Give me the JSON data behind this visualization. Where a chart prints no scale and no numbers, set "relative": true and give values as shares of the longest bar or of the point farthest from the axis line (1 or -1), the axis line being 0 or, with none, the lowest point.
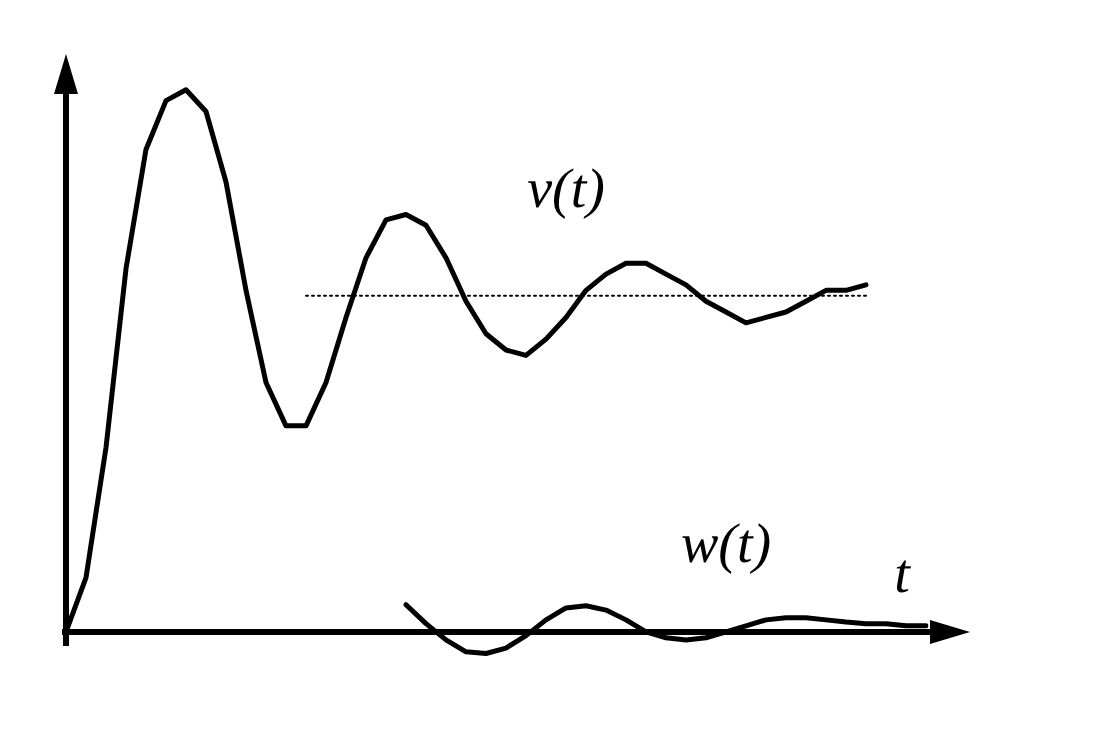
{
  "chart_data": {
    "type": "line",
    "relative": true,
    "xlabel": "t",
    "tick_labels": false,
    "marker": "none",
    "categories": [
      null,
      null,
      null,
      null,
      null,
      null,
      null,
      null,
      null,
      null,
      null,
      null,
      null,
      null,
      null,
      null,
      null,
      null,
      null,
      null,
      null,
      null,
      null,
      null,
      null,
      null,
      null,
      null,
      null,
      null,
      null,
      null,
      null,
      null,
      null,
      null,
      null,
      null,
      null,
      null,
      null,
      null,
      null,
      null
    ],
    "series": [
      {
        "name": "v(t)",
        "color": "#000000",
        "line_style": "solid",
        "values": [
          0,
          0.1,
          0.34,
          0.67,
          0.89,
          0.98,
          1,
          0.96,
          0.83,
          0.63,
          0.46,
          0.38,
          0.38,
          0.46,
          0.58,
          0.69,
          0.76,
          0.77,
          0.75,
          0.69,
          0.61,
          0.55,
          0.52,
          0.51,
          0.54,
          0.58,
          0.63,
          0.66,
          0.68,
          0.68,
          0.66,
          0.64,
          0.61,
          0.59,
          0.57,
          0.58,
          0.59,
          0.61,
          0.63,
          0.63,
          0.64,
          null,
          null,
          null
        ]
      },
      {
        "color": "#000000",
        "line_style": "dotted",
        "values": [
          null,
          null,
          null,
          null,
          null,
          null,
          null,
          null,
          null,
          null,
          null,
          null,
          0.62,
          0.62,
          0.62,
          0.62,
          0.62,
          0.62,
          0.62,
          0.62,
          0.62,
          0.62,
          0.62,
          0.62,
          0.62,
          0.62,
          0.62,
          0.62,
          0.62,
          0.62,
          0.62,
          0.62,
          0.62,
          0.62,
          0.62,
          0.62,
          0.62,
          0.62,
          0.62,
          0.62,
          0.62,
          null,
          null,
          null
        ]
      },
      {
        "name": "w(t)",
        "color": "#000000",
        "line_style": "solid",
        "values": [
          null,
          null,
          null,
          null,
          null,
          null,
          null,
          null,
          null,
          null,
          null,
          null,
          null,
          null,
          null,
          null,
          null,
          0.05,
          0.015,
          -0.015,
          -0.037,
          -0.04,
          -0.03,
          -0.007,
          0.022,
          0.044,
          0.048,
          0.04,
          0.022,
          0,
          -0.011,
          -0.015,
          -0.011,
          0,
          0.011,
          0.022,
          0.026,
          0.026,
          0.022,
          0.018,
          0.015,
          0.015,
          0.011,
          0.011
        ]
      }
    ]
  }
}
